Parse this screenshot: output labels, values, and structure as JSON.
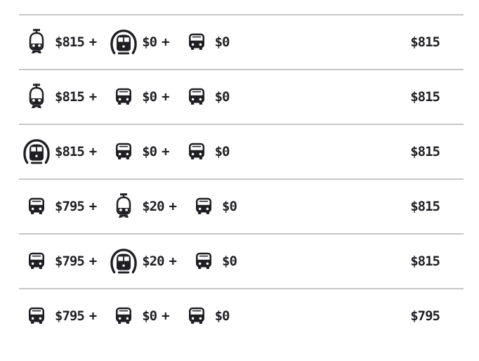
{
  "plus_sign": "+",
  "colors": {
    "text": "#1f1f23",
    "divider": "#c7c7c7",
    "background": "#ffffff"
  },
  "fare_table": {
    "rows": [
      {
        "legs": [
          {
            "icon": "train-icon",
            "mode": "train",
            "fare": "$815"
          },
          {
            "icon": "subway-icon",
            "mode": "subway",
            "fare": "$0"
          },
          {
            "icon": "bus-icon",
            "mode": "bus",
            "fare": "$0"
          }
        ],
        "total": "$815"
      },
      {
        "legs": [
          {
            "icon": "train-icon",
            "mode": "train",
            "fare": "$815"
          },
          {
            "icon": "bus-icon",
            "mode": "bus",
            "fare": "$0"
          },
          {
            "icon": "bus-icon",
            "mode": "bus",
            "fare": "$0"
          }
        ],
        "total": "$815"
      },
      {
        "legs": [
          {
            "icon": "subway-icon",
            "mode": "subway",
            "fare": "$815"
          },
          {
            "icon": "bus-icon",
            "mode": "bus",
            "fare": "$0"
          },
          {
            "icon": "bus-icon",
            "mode": "bus",
            "fare": "$0"
          }
        ],
        "total": "$815"
      },
      {
        "legs": [
          {
            "icon": "bus-icon",
            "mode": "bus",
            "fare": "$795"
          },
          {
            "icon": "train-icon",
            "mode": "train",
            "fare": "$20"
          },
          {
            "icon": "bus-icon",
            "mode": "bus",
            "fare": "$0"
          }
        ],
        "total": "$815"
      },
      {
        "legs": [
          {
            "icon": "bus-icon",
            "mode": "bus",
            "fare": "$795"
          },
          {
            "icon": "subway-icon",
            "mode": "subway",
            "fare": "$20"
          },
          {
            "icon": "bus-icon",
            "mode": "bus",
            "fare": "$0"
          }
        ],
        "total": "$815"
      },
      {
        "legs": [
          {
            "icon": "bus-icon",
            "mode": "bus",
            "fare": "$795"
          },
          {
            "icon": "bus-icon",
            "mode": "bus",
            "fare": "$0"
          },
          {
            "icon": "bus-icon",
            "mode": "bus",
            "fare": "$0"
          }
        ],
        "total": "$795"
      }
    ]
  }
}
